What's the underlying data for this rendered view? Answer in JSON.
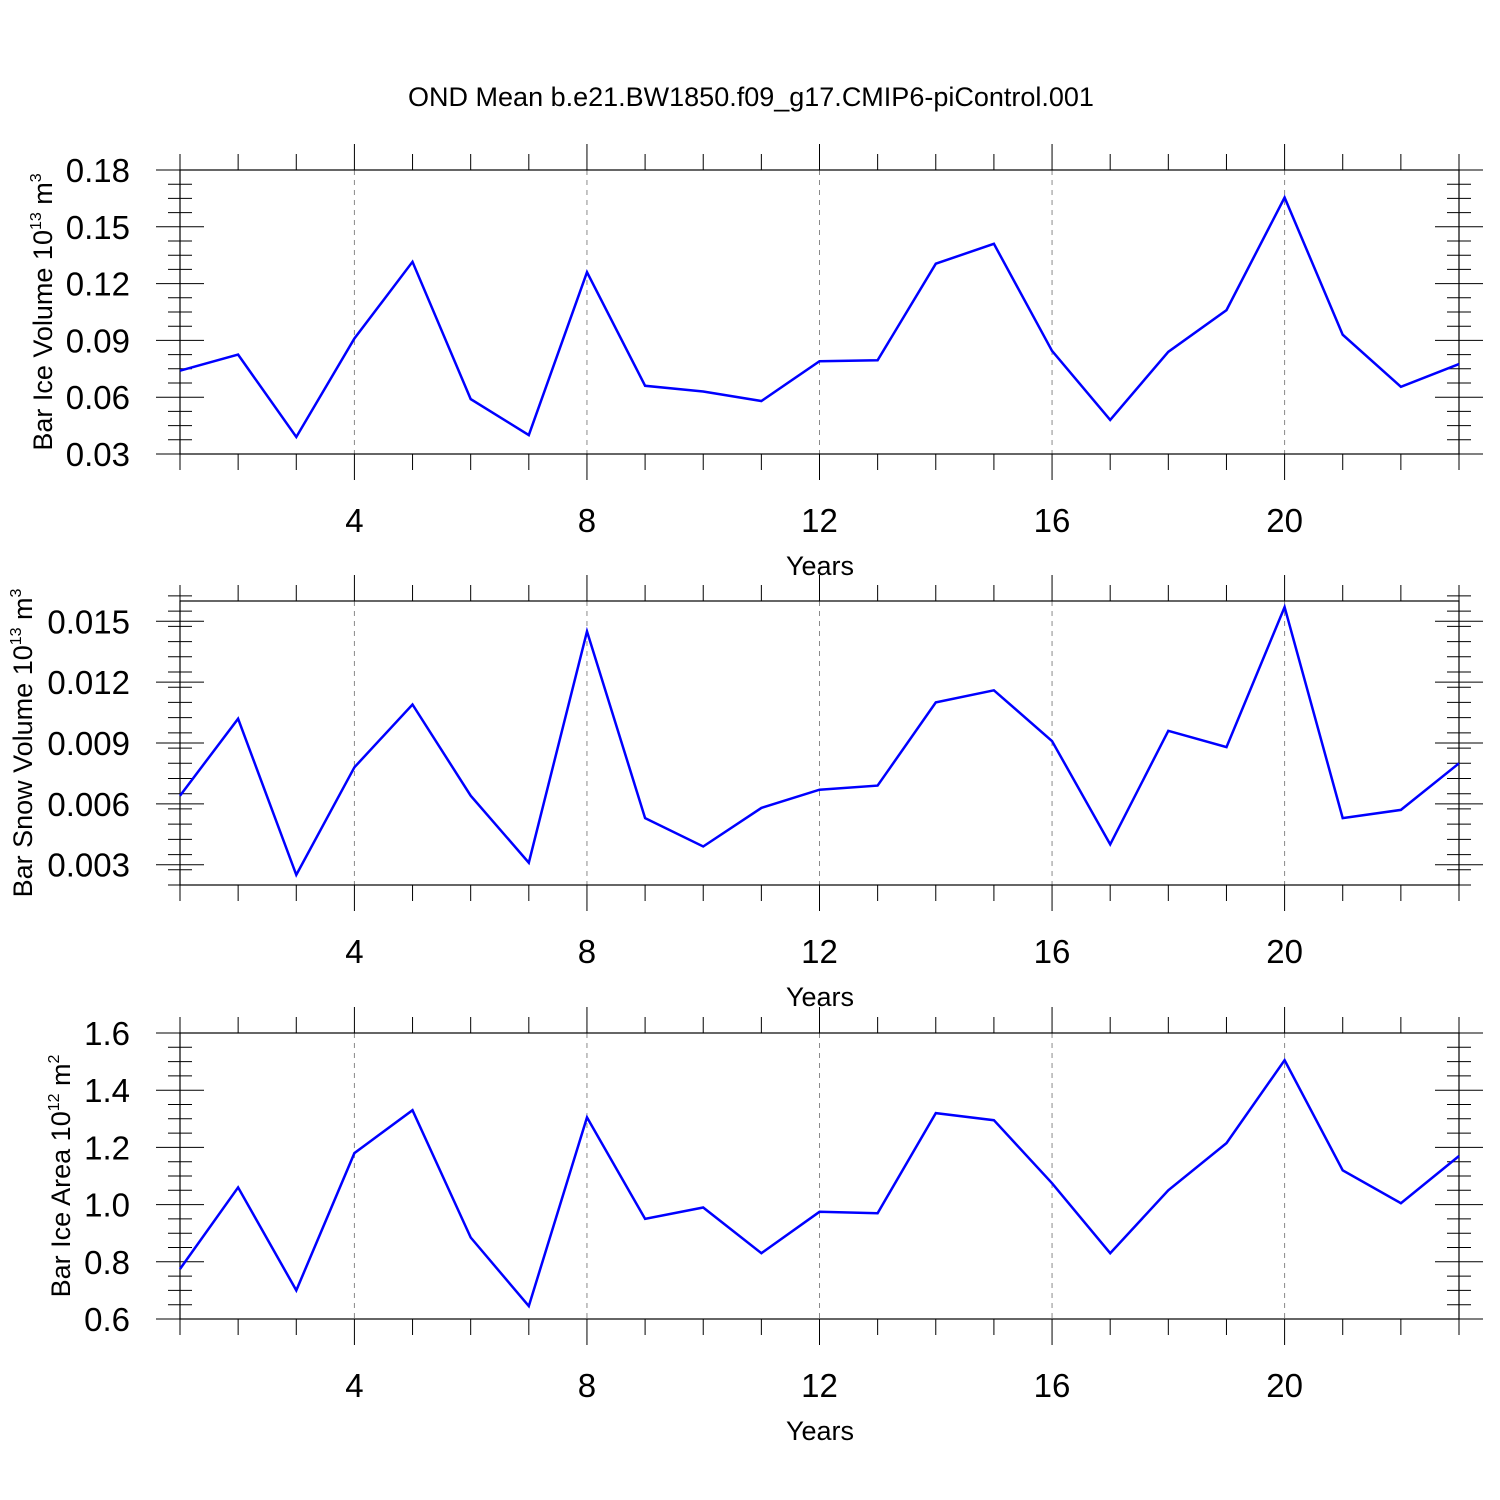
{
  "figure": {
    "title": "OND Mean b.e21.BW1850.f09_g17.CMIP6-piControl.001"
  },
  "chart_data": [
    {
      "type": "line",
      "xlabel": "Years",
      "ylabel": {
        "main": "Bar Ice Volume 10",
        "exp": "13",
        "unit": " m",
        "unit_exp": "3"
      },
      "xlim": [
        1,
        23
      ],
      "ylim": [
        0.03,
        0.18
      ],
      "xticks": [
        4,
        8,
        12,
        16,
        20
      ],
      "xtick_labels": [
        "4",
        "8",
        "12",
        "16",
        "20"
      ],
      "yticks": [
        0.03,
        0.06,
        0.09,
        0.12,
        0.15,
        0.18
      ],
      "ytick_labels": [
        "0.03",
        "0.06",
        "0.09",
        "0.12",
        "0.15",
        "0.18"
      ],
      "grid_x": "dashed at major ticks",
      "line_color": "#0000ff",
      "x": [
        1,
        2,
        3,
        4,
        5,
        6,
        7,
        8,
        9,
        10,
        11,
        12,
        13,
        14,
        15,
        16,
        17,
        18,
        19,
        20,
        21,
        22,
        23
      ],
      "series": [
        {
          "values": [
            0.074,
            0.0825,
            0.039,
            0.091,
            0.1315,
            0.059,
            0.04,
            0.126,
            0.066,
            0.063,
            0.058,
            0.079,
            0.0795,
            0.1305,
            0.141,
            0.0845,
            0.048,
            0.084,
            0.106,
            0.1655,
            0.093,
            0.0655,
            0.0775
          ]
        }
      ]
    },
    {
      "type": "line",
      "xlabel": "Years",
      "ylabel": {
        "main": "Bar Snow Volume 10",
        "exp": "13",
        "unit": " m",
        "unit_exp": "3"
      },
      "xlim": [
        1,
        23
      ],
      "ylim": [
        0.002,
        0.016
      ],
      "xticks": [
        4,
        8,
        12,
        16,
        20
      ],
      "xtick_labels": [
        "4",
        "8",
        "12",
        "16",
        "20"
      ],
      "yticks": [
        0.003,
        0.006,
        0.009,
        0.012,
        0.015
      ],
      "ytick_labels": [
        "0.003",
        "0.006",
        "0.009",
        "0.012",
        "0.015"
      ],
      "grid_x": "dashed at major ticks",
      "line_color": "#0000ff",
      "x": [
        1,
        2,
        3,
        4,
        5,
        6,
        7,
        8,
        9,
        10,
        11,
        12,
        13,
        14,
        15,
        16,
        17,
        18,
        19,
        20,
        21,
        22,
        23
      ],
      "series": [
        {
          "values": [
            0.0064,
            0.0102,
            0.0025,
            0.0078,
            0.0109,
            0.0064,
            0.0031,
            0.0145,
            0.0053,
            0.0039,
            0.0058,
            0.0067,
            0.0069,
            0.011,
            0.0116,
            0.0091,
            0.004,
            0.0096,
            0.0088,
            0.0157,
            0.0053,
            0.0057,
            0.008
          ]
        }
      ]
    },
    {
      "type": "line",
      "xlabel": "Years",
      "ylabel": {
        "main": "Bar Ice Area 10",
        "exp": "12",
        "unit": " m",
        "unit_exp": "2"
      },
      "xlim": [
        1,
        23
      ],
      "ylim": [
        0.6,
        1.6
      ],
      "xticks": [
        4,
        8,
        12,
        16,
        20
      ],
      "xtick_labels": [
        "4",
        "8",
        "12",
        "16",
        "20"
      ],
      "yticks": [
        0.6,
        0.8,
        1.0,
        1.2,
        1.4,
        1.6
      ],
      "ytick_labels": [
        "0.6",
        "0.8",
        "1.0",
        "1.2",
        "1.4",
        "1.6"
      ],
      "grid_x": "dashed at major ticks",
      "line_color": "#0000ff",
      "x": [
        1,
        2,
        3,
        4,
        5,
        6,
        7,
        8,
        9,
        10,
        11,
        12,
        13,
        14,
        15,
        16,
        17,
        18,
        19,
        20,
        21,
        22,
        23
      ],
      "series": [
        {
          "values": [
            0.775,
            1.06,
            0.7,
            1.18,
            1.33,
            0.885,
            0.645,
            1.305,
            0.95,
            0.99,
            0.83,
            0.975,
            0.97,
            1.32,
            1.295,
            1.075,
            0.83,
            1.05,
            1.215,
            1.505,
            1.12,
            1.005,
            1.17
          ]
        }
      ]
    }
  ]
}
